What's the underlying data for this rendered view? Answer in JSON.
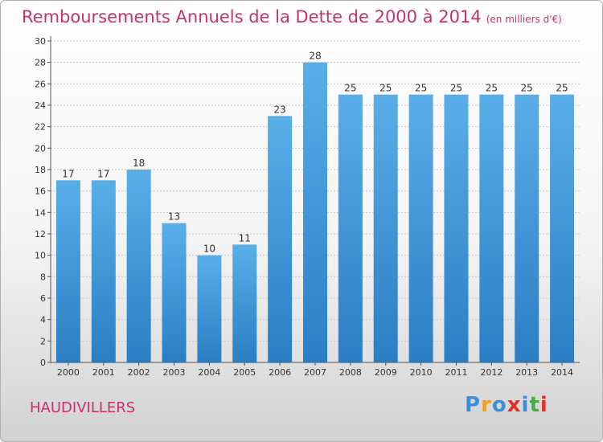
{
  "header": {
    "title": "Remboursements Annuels de la Dette de 2000 à 2014",
    "unit": "(en milliers d'€)"
  },
  "footer": {
    "commune": "HAUDIVILLERS",
    "logo": [
      "P",
      "r",
      "o",
      "x",
      "i",
      "t",
      "i"
    ]
  },
  "colors": {
    "bar_top": "#5aaee8",
    "bar_bottom": "#2a7ec4",
    "accent": "#c8306e",
    "logo": [
      "#3b8fd8",
      "#f0a020",
      "#3b8fd8",
      "#e0302a",
      "#3b8fd8",
      "#40b040",
      "#e0302a"
    ]
  },
  "chart_data": {
    "type": "bar",
    "categories": [
      "2000",
      "2001",
      "2002",
      "2003",
      "2004",
      "2005",
      "2006",
      "2007",
      "2008",
      "2009",
      "2010",
      "2011",
      "2012",
      "2013",
      "2014"
    ],
    "values": [
      17,
      17,
      18,
      13,
      10,
      11,
      23,
      28,
      25,
      25,
      25,
      25,
      25,
      25,
      25
    ],
    "value_labels": [
      "17",
      "17",
      "18",
      "13",
      "10",
      "11",
      "23",
      "28",
      "25",
      "25",
      "25",
      "25",
      "25",
      "25",
      "25"
    ],
    "ylim": [
      0,
      30
    ],
    "yticks": [
      "0",
      "2",
      "4",
      "6",
      "8",
      "10",
      "12",
      "14",
      "16",
      "18",
      "20",
      "22",
      "24",
      "26",
      "28",
      "30"
    ],
    "grid": true,
    "xlabel": "",
    "ylabel": ""
  }
}
